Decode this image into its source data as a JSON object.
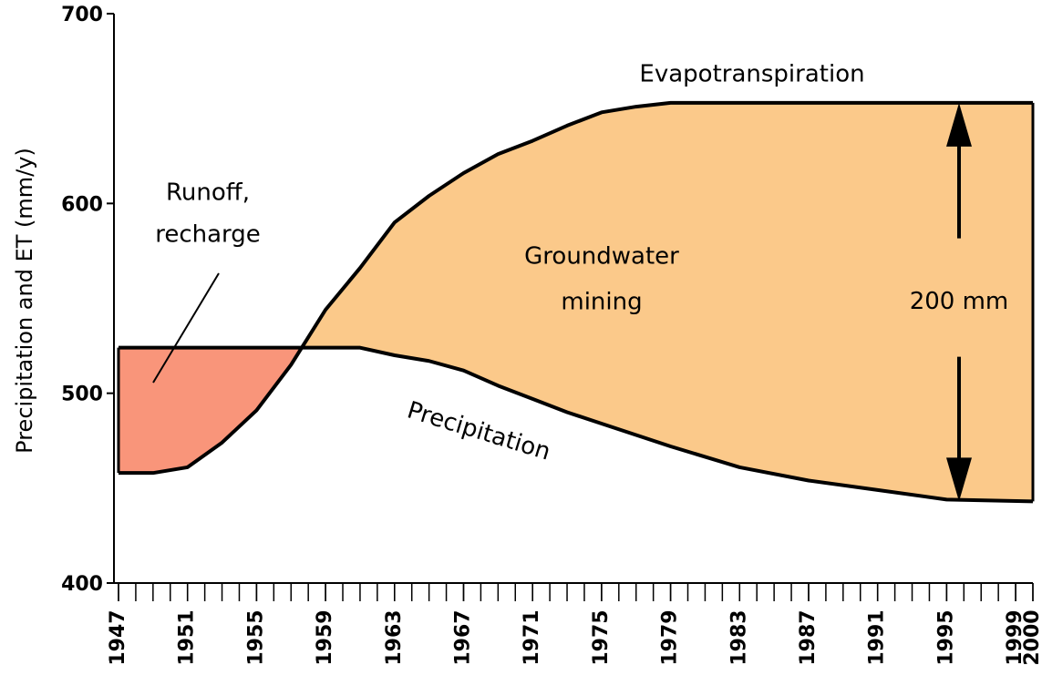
{
  "chart_data": {
    "type": "line",
    "y_label": "Precipitation and ET (mm/y)",
    "x": [
      1947,
      1949,
      1951,
      1953,
      1955,
      1957,
      1959,
      1961,
      1963,
      1965,
      1967,
      1969,
      1971,
      1973,
      1975,
      1977,
      1979,
      1983,
      1987,
      1991,
      1995,
      2000
    ],
    "series": [
      {
        "name": "Evapotranspiration",
        "color": "#000000",
        "values": [
          458,
          458,
          461,
          474,
          491,
          515,
          544,
          566,
          590,
          604,
          616,
          626,
          633,
          641,
          648,
          651,
          653,
          653,
          653,
          653,
          653,
          653
        ]
      },
      {
        "name": "Precipitation",
        "color": "#000000",
        "values": [
          524,
          524,
          524,
          524,
          524,
          524,
          524,
          524,
          520,
          517,
          512,
          504,
          497,
          490,
          484,
          478,
          472,
          461,
          454,
          449,
          444,
          443
        ]
      }
    ],
    "fill_colors": {
      "et_above": "#fbc98a",
      "precip_above": "#f9957a"
    },
    "annotations": {
      "runoff": [
        "Runoff,",
        "recharge"
      ],
      "mining": [
        "Groundwater",
        "mining"
      ],
      "difference": "200 mm"
    },
    "xlim": [
      1947,
      2000
    ],
    "xticks": [
      1947,
      1951,
      1955,
      1959,
      1963,
      1967,
      1971,
      1975,
      1979,
      1983,
      1987,
      1991,
      1995,
      1999,
      2000
    ],
    "minor_tick_step": 1,
    "ylim": [
      400,
      700
    ],
    "yticks": [
      400,
      500,
      600,
      700
    ],
    "grid": false
  }
}
